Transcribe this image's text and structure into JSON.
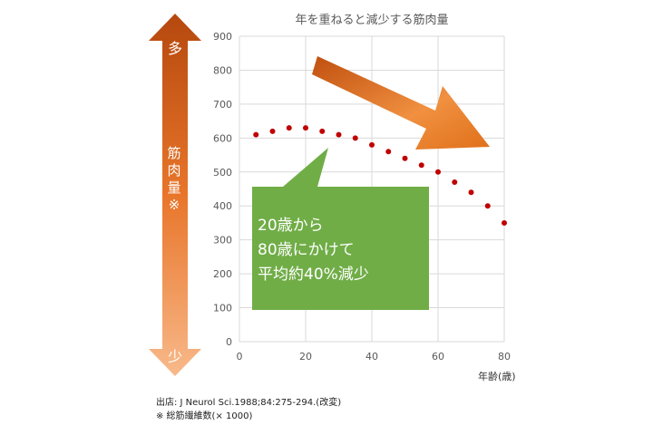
{
  "chart_data": {
    "type": "scatter",
    "title": "年を重ねると減少する筋肉量",
    "xlabel": "年齢(歳)",
    "ylabel": "",
    "xlim": [
      0,
      80
    ],
    "ylim": [
      0,
      900
    ],
    "x_ticks": [
      "0",
      "20",
      "40",
      "60",
      "80"
    ],
    "y_ticks": [
      "0",
      "100",
      "200",
      "300",
      "400",
      "500",
      "600",
      "700",
      "800",
      "900"
    ],
    "grid": true,
    "series": [
      {
        "points": [
          {
            "x": 5,
            "y": 610
          },
          {
            "x": 10,
            "y": 620
          },
          {
            "x": 15,
            "y": 630
          },
          {
            "x": 20,
            "y": 630
          },
          {
            "x": 25,
            "y": 620
          },
          {
            "x": 30,
            "y": 610
          },
          {
            "x": 35,
            "y": 600
          },
          {
            "x": 40,
            "y": 580
          },
          {
            "x": 45,
            "y": 560
          },
          {
            "x": 50,
            "y": 540
          },
          {
            "x": 55,
            "y": 520
          },
          {
            "x": 60,
            "y": 500
          },
          {
            "x": 65,
            "y": 470
          },
          {
            "x": 70,
            "y": 440
          },
          {
            "x": 75,
            "y": 400
          },
          {
            "x": 80,
            "y": 350
          }
        ]
      }
    ],
    "colors": {
      "points": "#c00000",
      "grid": "#d9d9d9",
      "arrow": "#e46c0a",
      "callout": "#70ad47"
    }
  },
  "side_arrow": {
    "top_label": "多",
    "middle_label": "筋肉量※",
    "bottom_label": "少"
  },
  "callout": {
    "line1": "20歳から",
    "line2": "80歳にかけて",
    "line3": "平均約40%減少"
  },
  "source": {
    "citation": "出店: J Neurol Sci.1988;84:275-294.(改変)",
    "note": "※ 総筋繊維数(× 1000)"
  }
}
